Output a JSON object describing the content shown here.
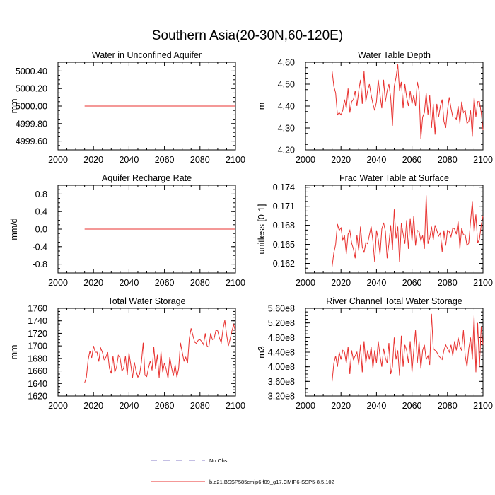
{
  "figure": {
    "title": "Southern Asia(20-30N,60-120E)",
    "legend": [
      {
        "label": "No Obs",
        "style": "dashed",
        "color": "#8a7fc8"
      },
      {
        "label": "b.e21.BSSP585cmip6.f09_g17.CMIP6-SSP5-8.5.102",
        "style": "solid",
        "color": "#e8312f"
      }
    ],
    "line_color": "#e8312f"
  },
  "chart_data": [
    {
      "type": "line",
      "title": "Water in Unconfined Aquifer",
      "ylabel": "mm",
      "xlim": [
        2000,
        2100
      ],
      "ylim": [
        4999.5,
        5000.5
      ],
      "xticks": [
        2000,
        2020,
        2040,
        2060,
        2080,
        2100
      ],
      "xtick_labels": [
        "2000",
        "2020",
        "2040",
        "2060",
        "2080",
        "2100"
      ],
      "yticks": [
        4999.6,
        4999.8,
        5000.0,
        5000.2,
        5000.4
      ],
      "ytick_labels": [
        "4999.60",
        "4999.80",
        "5000.00",
        "5000.20",
        "5000.40"
      ],
      "series": [
        {
          "name": "b.e21.BSSP585cmip6.f09_g17.CMIP6-SSP5-8.5.102",
          "x_start": 2015,
          "x_end": 2100,
          "values": [
            5000.0,
            5000.0
          ]
        }
      ]
    },
    {
      "type": "line",
      "title": "Water Table Depth",
      "ylabel": "m",
      "xlim": [
        2000,
        2100
      ],
      "ylim": [
        4.2,
        4.6
      ],
      "xticks": [
        2000,
        2020,
        2040,
        2060,
        2080,
        2100
      ],
      "xtick_labels": [
        "2000",
        "2020",
        "2040",
        "2060",
        "2080",
        "2100"
      ],
      "yticks": [
        4.2,
        4.3,
        4.4,
        4.5,
        4.6
      ],
      "ytick_labels": [
        "4.20",
        "4.30",
        "4.40",
        "4.50",
        "4.60"
      ],
      "series": [
        {
          "name": "b.e21.BSSP585cmip6.f09_g17.CMIP6-SSP5-8.5.102",
          "x_start": 2015,
          "x_end": 2100,
          "values": [
            4.56,
            4.49,
            4.46,
            4.36,
            4.37,
            4.36,
            4.38,
            4.43,
            4.39,
            4.48,
            4.37,
            4.42,
            4.43,
            4.47,
            4.4,
            4.47,
            4.52,
            4.41,
            4.56,
            4.42,
            4.47,
            4.5,
            4.45,
            4.41,
            4.38,
            4.42,
            4.52,
            4.45,
            4.39,
            4.52,
            4.42,
            4.47,
            4.5,
            4.44,
            4.31,
            4.49,
            4.53,
            4.59,
            4.47,
            4.51,
            4.39,
            4.5,
            4.44,
            4.4,
            4.47,
            4.41,
            4.45,
            4.4,
            4.51,
            4.47,
            4.25,
            4.35,
            4.37,
            4.46,
            4.36,
            4.45,
            4.3,
            4.41,
            4.27,
            4.41,
            4.35,
            4.4,
            4.43,
            4.33,
            4.3,
            4.38,
            4.44,
            4.39,
            4.35,
            4.35,
            4.34,
            4.4,
            4.32,
            4.42,
            4.37,
            4.38,
            4.32,
            4.33,
            4.38,
            4.26,
            4.44,
            4.35,
            4.42,
            4.42,
            4.37,
            4.29
          ]
        }
      ]
    },
    {
      "type": "line",
      "title": "Aquifer Recharge Rate",
      "ylabel": "mm/d",
      "xlim": [
        2000,
        2100
      ],
      "ylim": [
        -1.0,
        1.0
      ],
      "xticks": [
        2000,
        2020,
        2040,
        2060,
        2080,
        2100
      ],
      "xtick_labels": [
        "2000",
        "2020",
        "2040",
        "2060",
        "2080",
        "2100"
      ],
      "yticks": [
        -0.8,
        -0.4,
        0.0,
        0.4,
        0.8
      ],
      "ytick_labels": [
        "-0.8",
        "-0.4",
        "0.0",
        "0.4",
        "0.8"
      ],
      "series": [
        {
          "name": "b.e21.BSSP585cmip6.f09_g17.CMIP6-SSP5-8.5.102",
          "x_start": 2015,
          "x_end": 2100,
          "values": [
            0.0,
            0.0
          ]
        }
      ]
    },
    {
      "type": "line",
      "title": "Frac Water Table at Surface",
      "ylabel": "unitless [0-1]",
      "xlim": [
        2000,
        2100
      ],
      "ylim": [
        0.1605,
        0.1743
      ],
      "xticks": [
        2000,
        2020,
        2040,
        2060,
        2080,
        2100
      ],
      "xtick_labels": [
        "2000",
        "2020",
        "2040",
        "2060",
        "2080",
        "2100"
      ],
      "yticks": [
        0.162,
        0.165,
        0.168,
        0.171,
        0.174
      ],
      "ytick_labels": [
        "0.162",
        "0.165",
        "0.168",
        "0.171",
        "0.174"
      ],
      "series": [
        {
          "name": "b.e21.BSSP585cmip6.f09_g17.CMIP6-SSP5-8.5.102",
          "x_start": 2015,
          "x_end": 2100,
          "values": [
            0.1615,
            0.1637,
            0.165,
            0.1682,
            0.1672,
            0.1676,
            0.1657,
            0.1664,
            0.1635,
            0.1666,
            0.1672,
            0.1652,
            0.1643,
            0.1628,
            0.1665,
            0.164,
            0.1678,
            0.1646,
            0.1637,
            0.1653,
            0.1651,
            0.1665,
            0.1678,
            0.1655,
            0.1622,
            0.1672,
            0.1658,
            0.1634,
            0.1674,
            0.1684,
            0.1671,
            0.1628,
            0.1651,
            0.168,
            0.1641,
            0.1705,
            0.1659,
            0.1678,
            0.1622,
            0.1683,
            0.1667,
            0.1651,
            0.1688,
            0.1643,
            0.1691,
            0.1655,
            0.1695,
            0.1648,
            0.1672,
            0.167,
            0.1656,
            0.1664,
            0.1643,
            0.1727,
            0.1651,
            0.166,
            0.1678,
            0.1657,
            0.168,
            0.1672,
            0.1663,
            0.1668,
            0.1638,
            0.1672,
            0.1648,
            0.1672,
            0.167,
            0.1662,
            0.1676,
            0.1674,
            0.1666,
            0.1686,
            0.1643,
            0.1676,
            0.1665,
            0.1665,
            0.1648,
            0.1652,
            0.1686,
            0.1718,
            0.1669,
            0.1697,
            0.1652,
            0.1658,
            0.168,
            0.1695
          ]
        }
      ]
    },
    {
      "type": "line",
      "title": "Total Water Storage",
      "ylabel": "mm",
      "xlim": [
        2000,
        2100
      ],
      "ylim": [
        1620,
        1760
      ],
      "xticks": [
        2000,
        2020,
        2040,
        2060,
        2080,
        2100
      ],
      "xtick_labels": [
        "2000",
        "2020",
        "2040",
        "2060",
        "2080",
        "2100"
      ],
      "yticks": [
        1620,
        1640,
        1660,
        1680,
        1700,
        1720,
        1740,
        1760
      ],
      "ytick_labels": [
        "1620",
        "1640",
        "1660",
        "1680",
        "1700",
        "1720",
        "1740",
        "1760"
      ],
      "series": [
        {
          "name": "b.e21.BSSP585cmip6.f09_g17.CMIP6-SSP5-8.5.102",
          "x_start": 2015,
          "x_end": 2100,
          "values": [
            1641,
            1650,
            1678,
            1692,
            1681,
            1700,
            1690,
            1690,
            1675,
            1697,
            1690,
            1678,
            1682,
            1690,
            1664,
            1656,
            1684,
            1658,
            1666,
            1685,
            1681,
            1660,
            1664,
            1684,
            1653,
            1689,
            1670,
            1649,
            1674,
            1660,
            1650,
            1655,
            1674,
            1705,
            1653,
            1651,
            1665,
            1676,
            1661,
            1698,
            1663,
            1686,
            1649,
            1691,
            1658,
            1673,
            1662,
            1648,
            1682,
            1665,
            1652,
            1670,
            1650,
            1664,
            1705,
            1690,
            1676,
            1682,
            1672,
            1712,
            1728,
            1717,
            1706,
            1704,
            1709,
            1710,
            1707,
            1702,
            1720,
            1700,
            1698,
            1720,
            1710,
            1712,
            1725,
            1724,
            1712,
            1705,
            1727,
            1741,
            1718,
            1700,
            1711,
            1724,
            1734,
            1723
          ]
        }
      ]
    },
    {
      "type": "line",
      "title": "River Channel Total Water Storage",
      "ylabel": "m3",
      "xlim": [
        2000,
        2100
      ],
      "ylim": [
        320000000,
        560000000
      ],
      "xticks": [
        2000,
        2020,
        2040,
        2060,
        2080,
        2100
      ],
      "xtick_labels": [
        "2000",
        "2020",
        "2040",
        "2060",
        "2080",
        "2100"
      ],
      "yticks": [
        320000000,
        360000000,
        400000000,
        440000000,
        480000000,
        520000000,
        560000000
      ],
      "ytick_labels": [
        "3.20e8",
        "3.60e8",
        "4.00e8",
        "4.40e8",
        "4.80e8",
        "5.20e8",
        "5.60e8"
      ],
      "series": [
        {
          "name": "b.e21.BSSP585cmip6.f09_g17.CMIP6-SSP5-8.5.102",
          "x_start": 2015,
          "x_end": 2100,
          "values": [
            360000000,
            410000000,
            430000000,
            400000000,
            440000000,
            420000000,
            445000000,
            440000000,
            410000000,
            455000000,
            380000000,
            445000000,
            420000000,
            430000000,
            440000000,
            405000000,
            460000000,
            385000000,
            470000000,
            410000000,
            445000000,
            420000000,
            455000000,
            395000000,
            445000000,
            410000000,
            470000000,
            430000000,
            400000000,
            450000000,
            425000000,
            410000000,
            465000000,
            380000000,
            400000000,
            480000000,
            420000000,
            445000000,
            375000000,
            485000000,
            400000000,
            460000000,
            445000000,
            410000000,
            470000000,
            385000000,
            445000000,
            500000000,
            410000000,
            470000000,
            395000000,
            445000000,
            460000000,
            420000000,
            430000000,
            405000000,
            545000000,
            450000000,
            445000000,
            440000000,
            430000000,
            425000000,
            420000000,
            445000000,
            460000000,
            450000000,
            440000000,
            460000000,
            430000000,
            470000000,
            445000000,
            480000000,
            455000000,
            445000000,
            500000000,
            430000000,
            400000000,
            450000000,
            480000000,
            420000000,
            540000000,
            385000000,
            520000000,
            400000000,
            510000000,
            460000000
          ]
        }
      ]
    }
  ]
}
